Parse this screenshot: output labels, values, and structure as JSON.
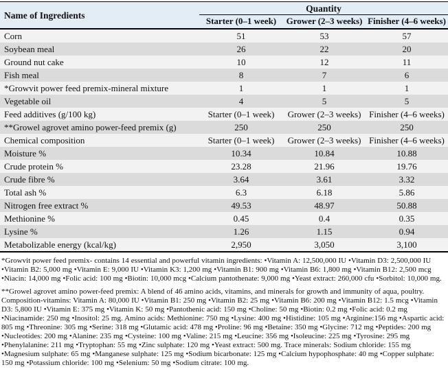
{
  "table": {
    "header": {
      "name_col": "Name of Ingredients",
      "group": "Quantity",
      "columns": [
        "Starter (0–1 week)",
        "Grower (2–3 weeks)",
        "Finisher (4–6 weeks)"
      ]
    },
    "rows": [
      {
        "name": "Corn",
        "values": [
          "51",
          "53",
          "57"
        ]
      },
      {
        "name": "Soybean meal",
        "values": [
          "26",
          "22",
          "20"
        ]
      },
      {
        "name": "Ground nut cake",
        "values": [
          "10",
          "12",
          "11"
        ]
      },
      {
        "name": "Fish meal",
        "values": [
          "8",
          "7",
          "6"
        ]
      },
      {
        "name": "*Growvit power feed premix-mineral mixture",
        "values": [
          "1",
          "1",
          "1"
        ]
      },
      {
        "name": "Vegetable oil",
        "values": [
          "4",
          "5",
          "5"
        ]
      },
      {
        "name": "Feed additives (g/100 kg)",
        "values": [
          "Starter (0–1 week)",
          "Grower (2–3 weeks)",
          "Finisher (4–6 weeks)"
        ]
      },
      {
        "name": "**Growel agrovet amino power-feed premix (g)",
        "values": [
          "250",
          "250",
          "250"
        ]
      },
      {
        "name": "Chemical composition",
        "values": [
          "Starter (0–1 week)",
          "Grower (2–3 weeks)",
          "Finisher (4–6 weeks)"
        ]
      },
      {
        "name": "Moisture %",
        "values": [
          "10.34",
          "10.84",
          "10.88"
        ]
      },
      {
        "name": "Crude protein %",
        "values": [
          "23.28",
          "21.96",
          "19.76"
        ]
      },
      {
        "name": "Crude fibre %",
        "values": [
          "3.64",
          "3.61",
          "3.32"
        ]
      },
      {
        "name": "Total ash %",
        "values": [
          "6.3",
          "6.18",
          "5.86"
        ]
      },
      {
        "name": "Nitrogen free extract %",
        "values": [
          "49.53",
          "48.97",
          "50.88"
        ]
      },
      {
        "name": "Methionine %",
        "values": [
          "0.45",
          "0.4",
          "0.35"
        ]
      },
      {
        "name": "Lysine %",
        "values": [
          "1.26",
          "1.15",
          "0.94"
        ]
      },
      {
        "name": "Metabolizable energy (kcal/kg)",
        "values": [
          "2,950",
          "3,050",
          "3,100"
        ]
      }
    ]
  },
  "footnotes": [
    "*Growvit power feed premix- contains 14 essential and powerful vitamin ingredients: •Vitamin A: 12,500,000 IU •Vitamin D3: 2,500,000 IU •Vitamin B2: 5,000 mg •Vitamin E: 9,000 IU •Vitamin K3: 1,200 mg •Vitamin B1: 900 mg •Vitamin B6: 1,800 mg •Vitamin B12: 2,500 mcg •Niacin: 14,000 mg •Folic acid: 100 mg •Biotin: 10,000 mcg •Calcium pantothenate: 9,000 mg •Yeast extract: 260,000 cfu •Sorbitol: 10,000 mg.",
    "**Growel agrovet amino power-feed premix: A blend of 46 amino acids, vitamins, and minerals for growth and immunity of aqua, poultry. Composition-vitamins: Vitamin A: 80,000 IU •Vitamin B1: 250 mg •Vitamin B2: 25 mg •Vitamin B6: 200 mg •Vitamin B12: 1.5 mcg •Vitamin D3: 5,800 IU •Vitamin E: 375 mg •Vitamin K: 50 mg •Pantothenic acid: 150 mg •Choline: 50 mg •Biotin: 0.2 mg •Folic acid: 0.2 mg •Niacinamide: 250 mg •Inositol: 25 mg. Amino acids: Methionine: 750 mg •Lysine: 400 mg •Histidine: 105 mg •Arginine:156 mg •Aspartic acid: 805 mg •Threonine: 305 mg •Serine: 318 mg •Glutamic acid: 478 mg •Proline: 96 mg •Betaine: 350 mg •Glycine: 712 mg •Peptides: 200 mg •Nucleotides: 200 mg •Alanine: 235 mg •Cysteine: 100 mg •Valine: 215 mg •Leucine: 356 mg •Isoleucine: 225 mg •Tyrosine: 295 mg •Phenylalanine: 211 mg •Tryptophan: 55 mg •Zinc sulphate: 120 mg •Yeast extract: 500 mg. Trace minerals: Sodium chloride: 155 mg •Magnesium sulphate: 65 mg •Manganese sulphate: 125 mg •Sodium bicarbonate: 125 mg •Calcium hypophosphate: 40 mg •Copper sulphate: 150 mg •Potassium chloride: 100 mg •Selenium: 50 mg •Sodium citrate: 100 mg."
  ],
  "colors": {
    "header_bg": "#e3edf6",
    "row_light": "#f2f2f2",
    "row_dark": "#dbdbdb",
    "border": "#000000"
  }
}
